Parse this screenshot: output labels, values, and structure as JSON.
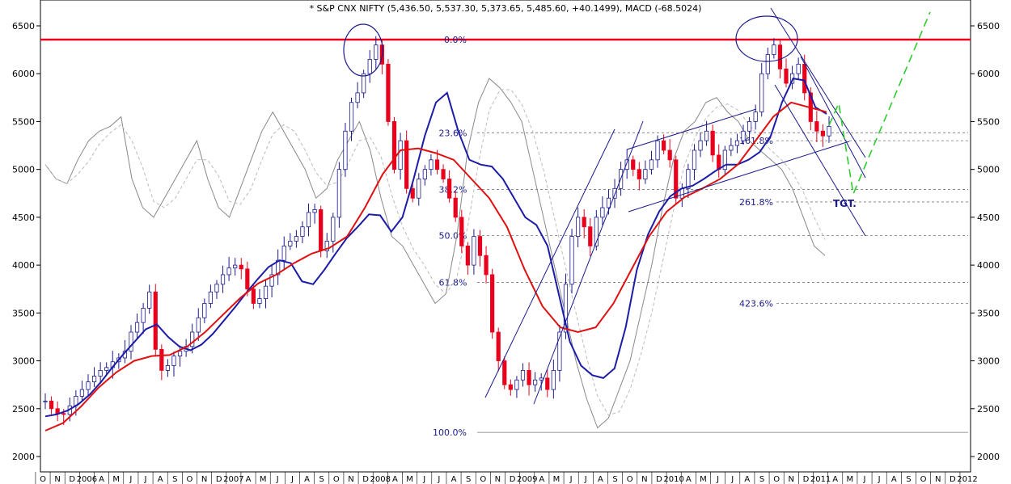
{
  "chart_data": {
    "type": "candlestick",
    "title": "* S&P CNX NIFTY (5,436.50, 5,537.30, 5,373.65, 5,485.60, +40.1499), MACD (-68.5024)",
    "ylim": [
      1950,
      6700
    ],
    "y_ticks": [
      "2000",
      "2500",
      "3000",
      "3500",
      "4000",
      "4500",
      "5000",
      "5500",
      "6000",
      "6500"
    ],
    "x_ticks": [
      "O",
      "N",
      "D",
      "2006",
      "A",
      "M",
      "J",
      "J",
      "A",
      "S",
      "O",
      "N",
      "D",
      "2007",
      "A",
      "M",
      "J",
      "J",
      "A",
      "S",
      "O",
      "N",
      "D",
      "2008",
      "A",
      "M",
      "J",
      "J",
      "A",
      "S",
      "O",
      "N",
      "D",
      "2009",
      "A",
      "M",
      "J",
      "J",
      "A",
      "S",
      "O",
      "N",
      "D",
      "2010",
      "A",
      "M",
      "J",
      "J",
      "A",
      "S",
      "O",
      "N",
      "D",
      "2011",
      "A",
      "M",
      "J",
      "J",
      "A",
      "S",
      "O",
      "N",
      "D",
      "2012"
    ],
    "resistance_level": 6357,
    "fib_levels": [
      {
        "label": "0.0%",
        "value": 6357
      },
      {
        "label": "23.6%",
        "value": 5383
      },
      {
        "label": "38.2%",
        "value": 4790
      },
      {
        "label": "50.0%",
        "value": 4310
      },
      {
        "label": "61.8%",
        "value": 3820
      },
      {
        "label": "100.0%",
        "value": 2252
      },
      {
        "label": "161.8%",
        "value": 5300
      },
      {
        "label": "261.8%",
        "value": 4660
      },
      {
        "label": "423.6%",
        "value": 3600
      }
    ],
    "annotation": "TGT.",
    "weekly_close": [
      2580,
      2500,
      2450,
      2440,
      2530,
      2630,
      2700,
      2780,
      2840,
      2900,
      2930,
      2990,
      3030,
      3100,
      3300,
      3400,
      3550,
      3720,
      3120,
      2900,
      2950,
      3050,
      3100,
      3150,
      3300,
      3450,
      3600,
      3720,
      3800,
      3900,
      3970,
      4000,
      3960,
      3750,
      3600,
      3650,
      3780,
      3900,
      4050,
      4200,
      4250,
      4300,
      4400,
      4550,
      4580,
      4150,
      4250,
      4500,
      5000,
      5400,
      5700,
      5800,
      6000,
      6150,
      6300,
      6100,
      5500,
      5000,
      5300,
      4800,
      4700,
      4900,
      5000,
      5100,
      5000,
      4900,
      4700,
      4500,
      4200,
      4000,
      4300,
      4100,
      3900,
      3300,
      3000,
      2750,
      2700,
      2800,
      2900,
      2750,
      2800,
      2820,
      2700,
      2900,
      3300,
      3800,
      4300,
      4500,
      4400,
      4200,
      4500,
      4600,
      4700,
      4800,
      5000,
      5100,
      5000,
      4900,
      5000,
      5100,
      5300,
      5200,
      5100,
      4700,
      4800,
      5000,
      5200,
      5300,
      5400,
      5150,
      5000,
      5200,
      5250,
      5300,
      5400,
      5500,
      5600,
      6000,
      6200,
      6300,
      6050,
      5900,
      6000,
      6100,
      5800,
      5500,
      5400,
      5350,
      5450
    ],
    "ema_fast": [
      2420,
      2440,
      2480,
      2550,
      2650,
      2780,
      2930,
      3070,
      3200,
      3330,
      3380,
      3250,
      3150,
      3110,
      3170,
      3280,
      3420,
      3560,
      3710,
      3850,
      3980,
      4050,
      4020,
      3830,
      3800,
      3950,
      4120,
      4280,
      4400,
      4530,
      4520,
      4350,
      4500,
      4900,
      5350,
      5700,
      5800,
      5400,
      5100,
      5050,
      5030,
      4900,
      4700,
      4500,
      4420,
      4200,
      3700,
      3200,
      2950,
      2850,
      2820,
      2920,
      3350,
      3950,
      4320,
      4560,
      4720,
      4800,
      4830,
      4900,
      4980,
      5050,
      5050,
      5100,
      5180,
      5350,
      5700,
      5950,
      5930,
      5650,
      5580
    ],
    "ema_slow": [
      2270,
      2350,
      2520,
      2720,
      2880,
      3000,
      3050,
      3060,
      3150,
      3300,
      3480,
      3660,
      3810,
      3900,
      4020,
      4120,
      4180,
      4300,
      4600,
      4950,
      5200,
      5220,
      5170,
      5100,
      4900,
      4700,
      4400,
      3950,
      3570,
      3350,
      3300,
      3350,
      3600,
      3950,
      4300,
      4560,
      4710,
      4800,
      4900,
      5050,
      5300,
      5550,
      5700,
      5650,
      5600
    ]
  }
}
